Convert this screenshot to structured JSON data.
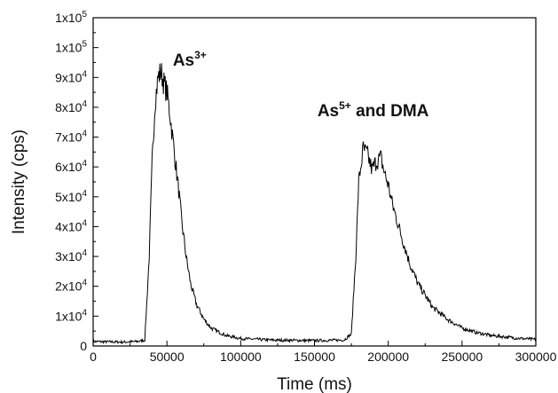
{
  "chart_data": {
    "type": "line",
    "xlabel": "Time (ms)",
    "ylabel": "Intensity (cps)",
    "xlim": [
      0,
      300000
    ],
    "ylim": [
      0,
      100000
    ],
    "x_ticks": [
      0,
      50000,
      100000,
      150000,
      200000,
      250000,
      300000
    ],
    "x_tick_labels": [
      "0",
      "50000",
      "100000",
      "150000",
      "200000",
      "250000",
      "300000"
    ],
    "y_ticks": [
      {
        "value": 0,
        "base": "0",
        "exp": ""
      },
      {
        "value": 10000,
        "base": "1x10",
        "exp": "4"
      },
      {
        "value": 20000,
        "base": "2x10",
        "exp": "4"
      },
      {
        "value": 30000,
        "base": "3x10",
        "exp": "4"
      },
      {
        "value": 40000,
        "base": "4x10",
        "exp": "4"
      },
      {
        "value": 50000,
        "base": "5x10",
        "exp": "4"
      },
      {
        "value": 60000,
        "base": "6x10",
        "exp": "4"
      },
      {
        "value": 70000,
        "base": "7x10",
        "exp": "4"
      },
      {
        "value": 80000,
        "base": "8x10",
        "exp": "4"
      },
      {
        "value": 90000,
        "base": "9x10",
        "exp": "4"
      },
      {
        "value": 100000,
        "base": "1x10",
        "exp": "5"
      },
      {
        "value": 110000,
        "base": "1x10",
        "exp": "5"
      }
    ],
    "grid": false,
    "line_color": "#000000",
    "annotations": [
      {
        "id": "as3",
        "base": "As",
        "sup": "3+",
        "rest": "",
        "x": 54000,
        "y": 94000
      },
      {
        "id": "as5",
        "base": "As",
        "sup": "5+",
        "rest": " and DMA",
        "x": 152000,
        "y": 77000
      }
    ],
    "series": [
      {
        "x": [
          0,
          10000,
          20000,
          30000,
          35000,
          38000,
          40000,
          42000,
          44000,
          46000,
          48000,
          50000,
          52000,
          55000,
          58000,
          60000,
          63000,
          66000,
          70000,
          75000,
          80000,
          90000,
          100000,
          120000,
          150000,
          170000,
          175000,
          178000,
          180000,
          183000,
          186000,
          189000,
          192000,
          195000,
          198000,
          200000,
          203000,
          206000,
          210000,
          215000,
          220000,
          230000,
          240000,
          250000,
          260000,
          270000,
          280000,
          290000,
          300000
        ],
        "y": [
          1500,
          1400,
          1300,
          1500,
          2000,
          30000,
          62000,
          82000,
          90000,
          92000,
          88000,
          85000,
          78000,
          65000,
          52000,
          42000,
          30000,
          21000,
          14000,
          9000,
          6000,
          3500,
          2500,
          2000,
          1800,
          2000,
          4000,
          30000,
          55000,
          66000,
          64000,
          59000,
          62000,
          63000,
          57000,
          54000,
          47000,
          42000,
          35000,
          27000,
          21000,
          13000,
          9000,
          6000,
          4500,
          3500,
          3000,
          2500,
          2200
        ]
      }
    ]
  }
}
